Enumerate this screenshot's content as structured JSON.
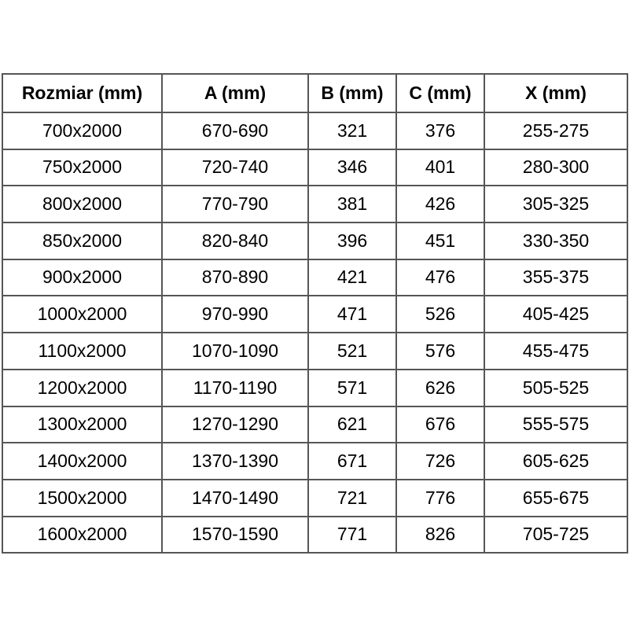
{
  "chart_data": {
    "type": "table",
    "title": "",
    "headers": [
      "Rozmiar (mm)",
      "A (mm)",
      "B (mm)",
      "C (mm)",
      "X (mm)"
    ],
    "rows": [
      [
        "700x2000",
        "670-690",
        "321",
        "376",
        "255-275"
      ],
      [
        "750x2000",
        "720-740",
        "346",
        "401",
        "280-300"
      ],
      [
        "800x2000",
        "770-790",
        "381",
        "426",
        "305-325"
      ],
      [
        "850x2000",
        "820-840",
        "396",
        "451",
        "330-350"
      ],
      [
        "900x2000",
        "870-890",
        "421",
        "476",
        "355-375"
      ],
      [
        "1000x2000",
        "970-990",
        "471",
        "526",
        "405-425"
      ],
      [
        "1100x2000",
        "1070-1090",
        "521",
        "576",
        "455-475"
      ],
      [
        "1200x2000",
        "1170-1190",
        "571",
        "626",
        "505-525"
      ],
      [
        "1300x2000",
        "1270-1290",
        "621",
        "676",
        "555-575"
      ],
      [
        "1400x2000",
        "1370-1390",
        "671",
        "726",
        "605-625"
      ],
      [
        "1500x2000",
        "1470-1490",
        "721",
        "776",
        "655-675"
      ],
      [
        "1600x2000",
        "1570-1590",
        "771",
        "826",
        "705-725"
      ]
    ],
    "layout": {
      "grid": true,
      "header_bold": true,
      "cell_alignment": "center"
    }
  },
  "colors": {
    "border": "#565656",
    "text": "#000000",
    "background": "#ffffff"
  }
}
